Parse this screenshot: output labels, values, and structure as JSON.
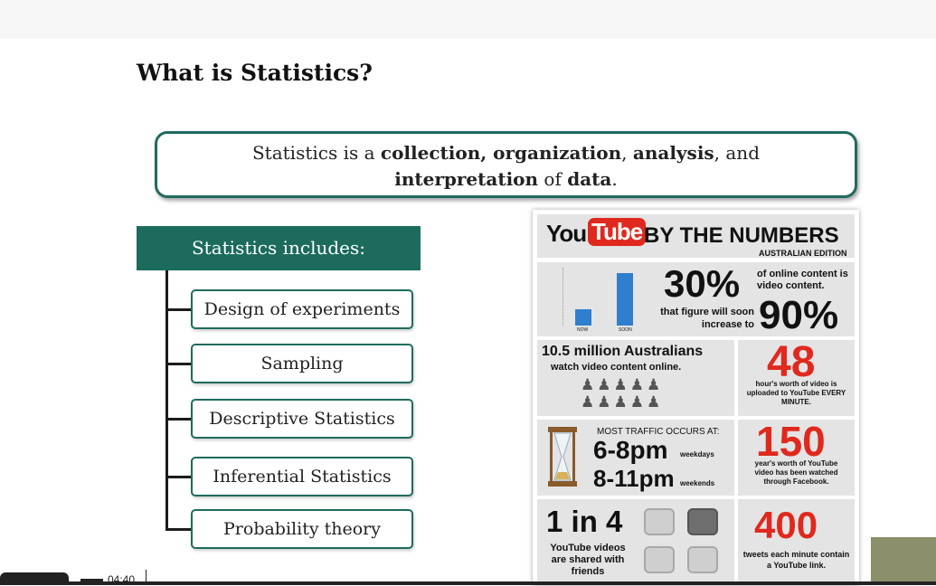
{
  "slide": {
    "title": "What is Statistics?",
    "definition": {
      "t1": "Statistics is a ",
      "b1": "collection, organization",
      "t2": ", ",
      "b2": "analysis",
      "t3": ", and",
      "b3": "interpretation",
      "t4": " of ",
      "b4": "data",
      "t5": "."
    },
    "includes_heading": "Statistics includes:",
    "items": [
      "Design of experiments",
      "Sampling",
      "Descriptive Statistics",
      "Inferential Statistics",
      "Probability theory"
    ]
  },
  "infographic": {
    "logo_you": "You",
    "logo_tube": "Tube",
    "headline": "BY THE NUMBERS",
    "edition": "AUSTRALIAN EDITION",
    "bar_labels": [
      "NOW",
      "SOON"
    ],
    "stat1_big": "30%",
    "stat1_text": "of online content is video content.",
    "stat1_sub": "that figure will soon increase to",
    "stat1_big2": "90%",
    "stat2_title": "10.5 million Australians",
    "stat2_text": "watch video content online.",
    "stat3_big": "48",
    "stat3_text": "hour's worth of video is uploaded to YouTube EVERY MINUTE.",
    "stat4_head": "MOST TRAFFIC OCCURS AT:",
    "stat4_t1": "6-8pm",
    "stat4_l1": "weekdays",
    "stat4_t2": "8-11pm",
    "stat4_l2": "weekends",
    "stat5_big": "150",
    "stat5_text": "year's worth of YouTube video has been watched through Facebook.",
    "stat6_big": "1 in 4",
    "stat6_text": "YouTube videos are shared with friends",
    "stat7_big": "400",
    "stat7_text": "tweets each minute contain a YouTube link."
  },
  "player": {
    "timecode": "04:40"
  }
}
